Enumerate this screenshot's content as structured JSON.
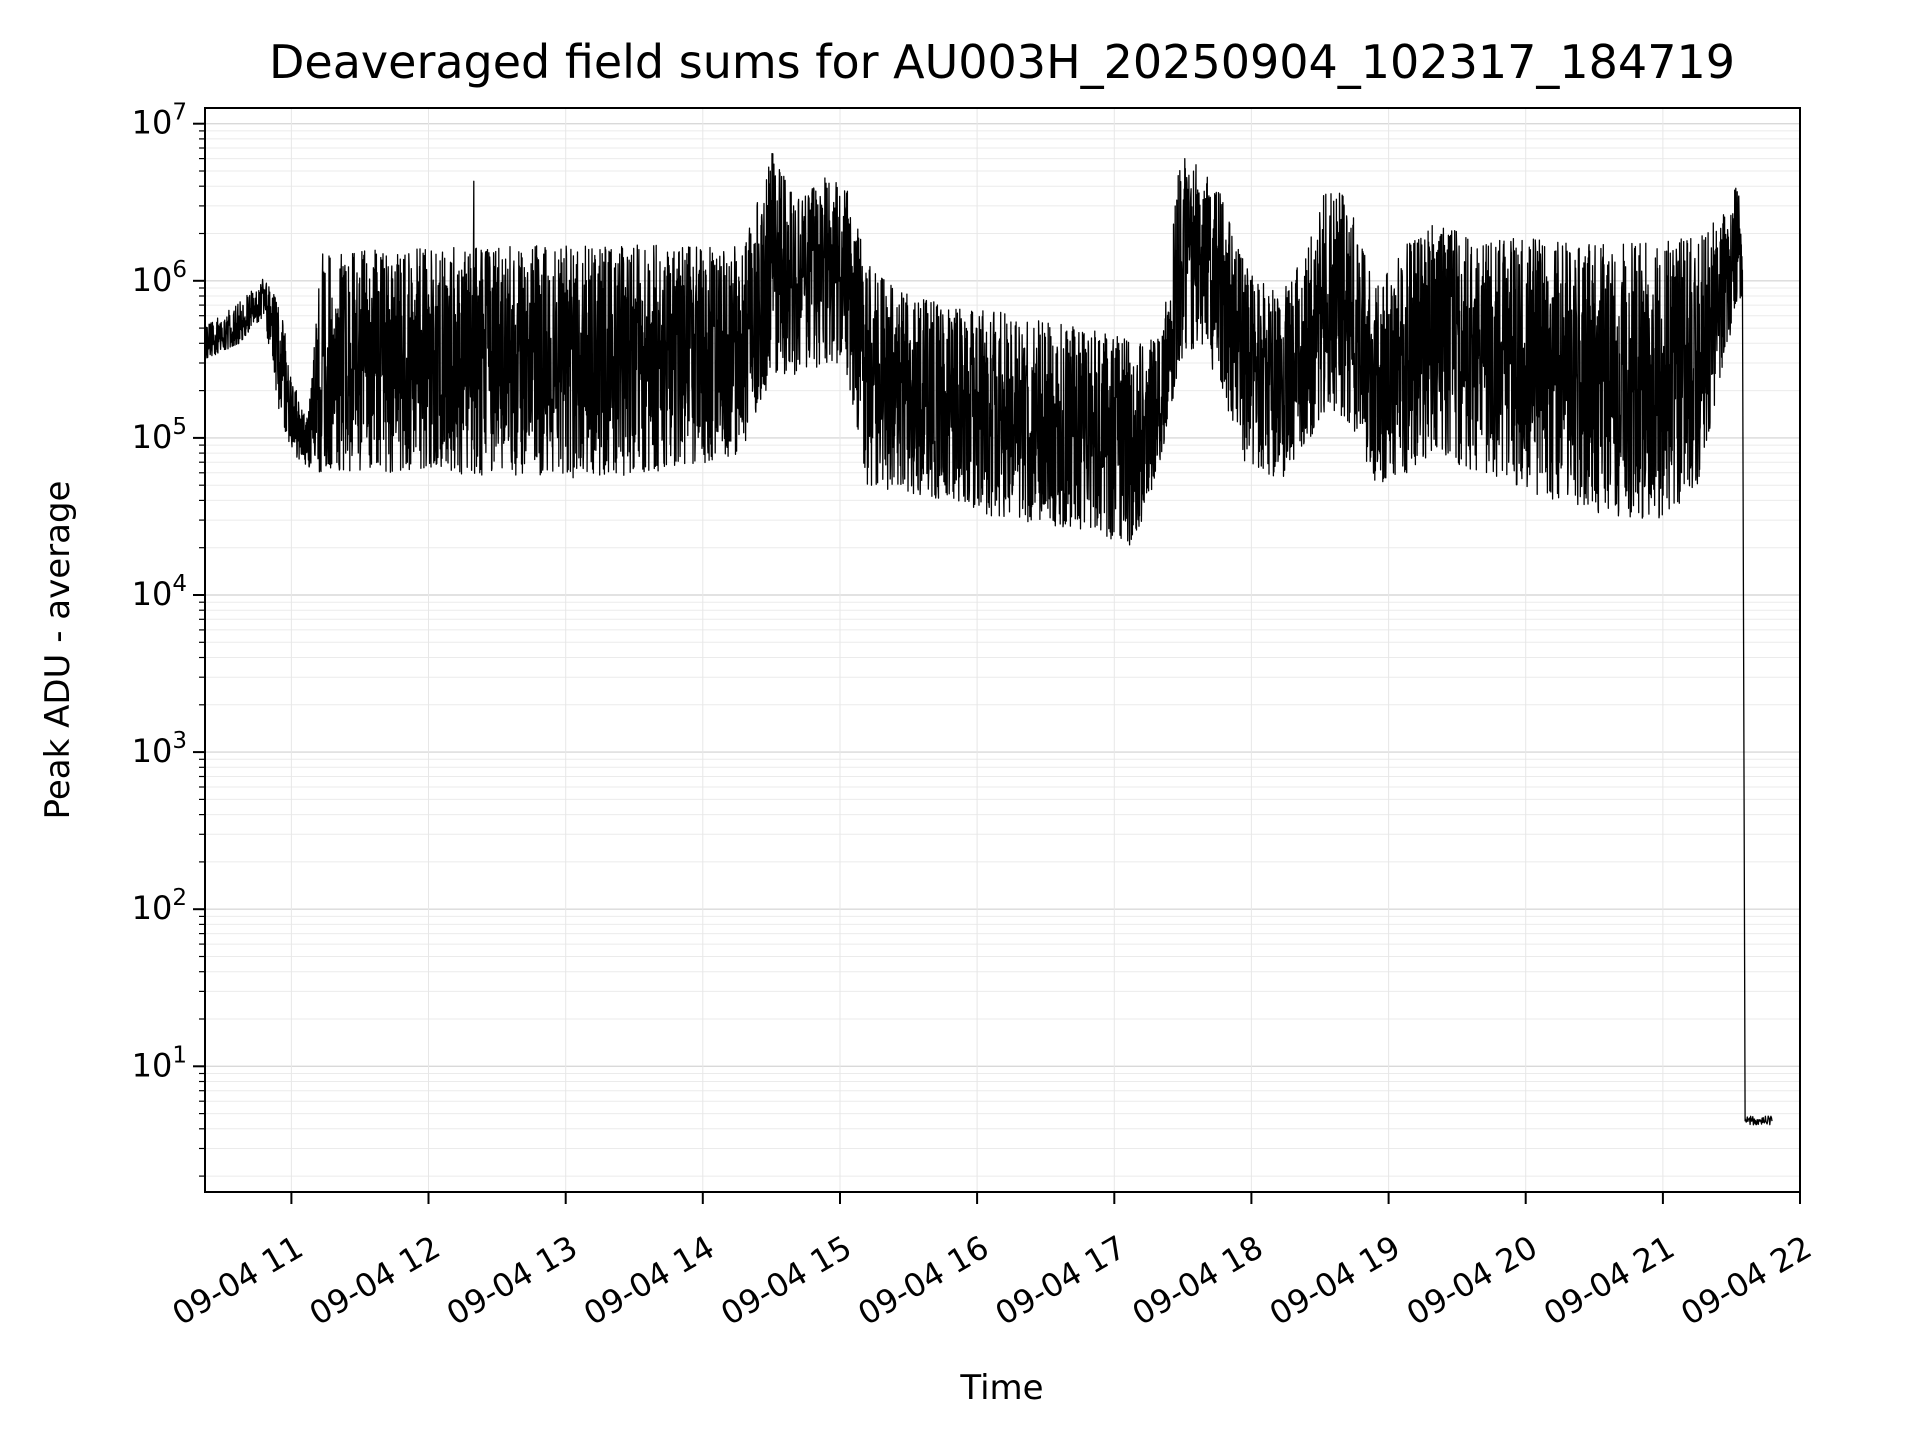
{
  "chart_data": {
    "type": "line",
    "title": "Deaveraged field sums for AU003H_20250904_102317_184719",
    "xlabel": "Time",
    "ylabel": "Peak ADU - average",
    "series_color": "#000000",
    "background_color": "#ffffff",
    "grid": {
      "major_color": "#d9d9d9",
      "minor_color": "#ebebeb",
      "vertical_color": "#e7e7e7"
    },
    "x_axis": {
      "range_hours": [
        10.37,
        22.0
      ],
      "ticks": [
        {
          "hour": 11,
          "label": "09-04 11"
        },
        {
          "hour": 12,
          "label": "09-04 12"
        },
        {
          "hour": 13,
          "label": "09-04 13"
        },
        {
          "hour": 14,
          "label": "09-04 14"
        },
        {
          "hour": 15,
          "label": "09-04 15"
        },
        {
          "hour": 16,
          "label": "09-04 16"
        },
        {
          "hour": 17,
          "label": "09-04 17"
        },
        {
          "hour": 18,
          "label": "09-04 18"
        },
        {
          "hour": 19,
          "label": "09-04 19"
        },
        {
          "hour": 20,
          "label": "09-04 20"
        },
        {
          "hour": 21,
          "label": "09-04 21"
        },
        {
          "hour": 22,
          "label": "09-04 22"
        }
      ]
    },
    "y_axis": {
      "scale": "log",
      "range_exp": [
        0.2,
        7.1
      ],
      "major_exponents": [
        1,
        2,
        3,
        4,
        5,
        6,
        7
      ],
      "tick_base": "10"
    },
    "envelope": [
      {
        "t": 10.38,
        "lo": 320000,
        "hi": 520000
      },
      {
        "t": 10.6,
        "lo": 380000,
        "hi": 700000
      },
      {
        "t": 10.8,
        "lo": 600000,
        "hi": 1050000
      },
      {
        "t": 10.92,
        "lo": 130000,
        "hi": 700000
      },
      {
        "t": 11.02,
        "lo": 75000,
        "hi": 220000
      },
      {
        "t": 11.12,
        "lo": 65000,
        "hi": 130000
      },
      {
        "t": 11.22,
        "lo": 60000,
        "hi": 1500000
      },
      {
        "t": 12.0,
        "lo": 60000,
        "hi": 1650000
      },
      {
        "t": 13.0,
        "lo": 55000,
        "hi": 1700000
      },
      {
        "t": 13.8,
        "lo": 60000,
        "hi": 1700000
      },
      {
        "t": 14.3,
        "lo": 80000,
        "hi": 1650000
      },
      {
        "t": 14.5,
        "lo": 250000,
        "hi": 6800000
      },
      {
        "t": 14.7,
        "lo": 250000,
        "hi": 3300000
      },
      {
        "t": 14.9,
        "lo": 300000,
        "hi": 4600000
      },
      {
        "t": 15.05,
        "lo": 250000,
        "hi": 4000000
      },
      {
        "t": 15.2,
        "lo": 50000,
        "hi": 1300000
      },
      {
        "t": 15.45,
        "lo": 45000,
        "hi": 850000
      },
      {
        "t": 15.8,
        "lo": 40000,
        "hi": 700000
      },
      {
        "t": 16.1,
        "lo": 32000,
        "hi": 650000
      },
      {
        "t": 16.5,
        "lo": 28000,
        "hi": 550000
      },
      {
        "t": 16.9,
        "lo": 24000,
        "hi": 480000
      },
      {
        "t": 17.15,
        "lo": 20000,
        "hi": 420000
      },
      {
        "t": 17.35,
        "lo": 80000,
        "hi": 450000
      },
      {
        "t": 17.48,
        "lo": 300000,
        "hi": 6400000
      },
      {
        "t": 17.62,
        "lo": 400000,
        "hi": 5800000
      },
      {
        "t": 17.78,
        "lo": 200000,
        "hi": 3500000
      },
      {
        "t": 17.95,
        "lo": 70000,
        "hi": 1300000
      },
      {
        "t": 18.2,
        "lo": 50000,
        "hi": 800000
      },
      {
        "t": 18.4,
        "lo": 90000,
        "hi": 1500000
      },
      {
        "t": 18.55,
        "lo": 150000,
        "hi": 4200000
      },
      {
        "t": 18.72,
        "lo": 120000,
        "hi": 3400000
      },
      {
        "t": 18.9,
        "lo": 50000,
        "hi": 900000
      },
      {
        "t": 19.15,
        "lo": 60000,
        "hi": 1800000
      },
      {
        "t": 19.35,
        "lo": 80000,
        "hi": 2500000
      },
      {
        "t": 19.6,
        "lo": 60000,
        "hi": 1800000
      },
      {
        "t": 19.9,
        "lo": 50000,
        "hi": 1900000
      },
      {
        "t": 20.2,
        "lo": 40000,
        "hi": 1800000
      },
      {
        "t": 20.6,
        "lo": 32000,
        "hi": 1700000
      },
      {
        "t": 21.0,
        "lo": 30000,
        "hi": 1800000
      },
      {
        "t": 21.25,
        "lo": 50000,
        "hi": 1900000
      },
      {
        "t": 21.45,
        "lo": 300000,
        "hi": 2700000
      },
      {
        "t": 21.55,
        "lo": 700000,
        "hi": 4500000
      },
      {
        "t": 21.58,
        "lo": 800000,
        "hi": 1300000
      }
    ],
    "isolated_spike": {
      "t": 12.33,
      "value": 4300000
    },
    "tail": {
      "start": 21.6,
      "end": 21.8,
      "value": 4.5
    }
  }
}
